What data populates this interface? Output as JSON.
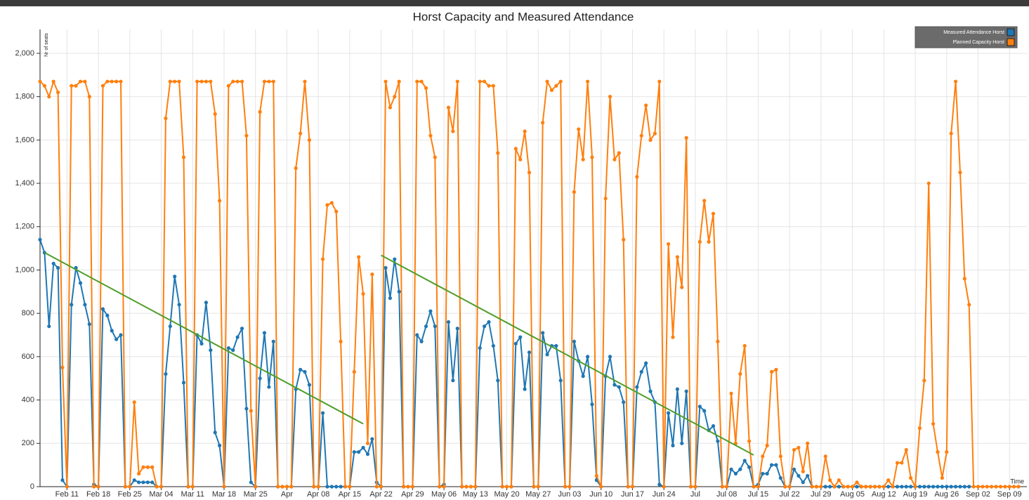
{
  "chart_data": {
    "type": "line",
    "title": "Horst Capacity and Measured Attendance",
    "y_label": "Nr of seats",
    "x_label": "Time",
    "x": [
      "Feb 05",
      "Feb 06",
      "Feb 07",
      "Feb 08",
      "Feb 09",
      "Feb 10",
      "Feb 11",
      "Feb 12",
      "Feb 13",
      "Feb 14",
      "Feb 15",
      "Feb 16",
      "Feb 17",
      "Feb 18",
      "Feb 19",
      "Feb 20",
      "Feb 21",
      "Feb 22",
      "Feb 23",
      "Feb 24",
      "Feb 25",
      "Feb 26",
      "Feb 27",
      "Feb 28",
      "Mar 01",
      "Mar 02",
      "Mar 03",
      "Mar 04",
      "Mar 05",
      "Mar 06",
      "Mar 07",
      "Mar 08",
      "Mar 09",
      "Mar 10",
      "Mar 11",
      "Mar 12",
      "Mar 13",
      "Mar 14",
      "Mar 15",
      "Mar 16",
      "Mar 17",
      "Mar 18",
      "Mar 19",
      "Mar 20",
      "Mar 21",
      "Mar 22",
      "Mar 23",
      "Mar 24",
      "Mar 25",
      "Mar 26",
      "Mar 27",
      "Mar 28",
      "Mar 29",
      "Mar 30",
      "Mar 31",
      "Apr 01",
      "Apr 02",
      "Apr 03",
      "Apr 04",
      "Apr 05",
      "Apr 06",
      "Apr 07",
      "Apr 08",
      "Apr 09",
      "Apr 10",
      "Apr 11",
      "Apr 12",
      "Apr 13",
      "Apr 14",
      "Apr 15",
      "Apr 16",
      "Apr 17",
      "Apr 18",
      "Apr 19",
      "Apr 20",
      "Apr 21",
      "Apr 22",
      "Apr 23",
      "Apr 24",
      "Apr 25",
      "Apr 26",
      "Apr 27",
      "Apr 28",
      "Apr 29",
      "Apr 30",
      "May 01",
      "May 02",
      "May 03",
      "May 04",
      "May 05",
      "May 06",
      "May 07",
      "May 08",
      "May 09",
      "May 10",
      "May 11",
      "May 12",
      "May 13",
      "May 14",
      "May 15",
      "May 16",
      "May 17",
      "May 18",
      "May 19",
      "May 20",
      "May 21",
      "May 22",
      "May 23",
      "May 24",
      "May 25",
      "May 26",
      "May 27",
      "May 28",
      "May 29",
      "May 30",
      "May 31",
      "Jun 01",
      "Jun 02",
      "Jun 03",
      "Jun 04",
      "Jun 05",
      "Jun 06",
      "Jun 07",
      "Jun 08",
      "Jun 09",
      "Jun 10",
      "Jun 11",
      "Jun 12",
      "Jun 13",
      "Jun 14",
      "Jun 15",
      "Jun 16",
      "Jun 17",
      "Jun 18",
      "Jun 19",
      "Jun 20",
      "Jun 21",
      "Jun 22",
      "Jun 23",
      "Jun 24",
      "Jun 25",
      "Jun 26",
      "Jun 27",
      "Jun 28",
      "Jun 29",
      "Jun 30",
      "Jul 01",
      "Jul 02",
      "Jul 03",
      "Jul 04",
      "Jul 05",
      "Jul 06",
      "Jul 07",
      "Jul 08",
      "Jul 09",
      "Jul 10",
      "Jul 11",
      "Jul 12",
      "Jul 13",
      "Jul 14",
      "Jul 15",
      "Jul 16",
      "Jul 17",
      "Jul 18",
      "Jul 19",
      "Jul 20",
      "Jul 21",
      "Jul 22",
      "Jul 23",
      "Jul 24",
      "Jul 25",
      "Jul 26",
      "Jul 27",
      "Jul 28",
      "Jul 29",
      "Jul 30",
      "Jul 31",
      "Aug 01",
      "Aug 02",
      "Aug 03",
      "Aug 04",
      "Aug 05",
      "Aug 06",
      "Aug 07",
      "Aug 08",
      "Aug 09",
      "Aug 10",
      "Aug 11",
      "Aug 12",
      "Aug 13",
      "Aug 14",
      "Aug 15",
      "Aug 16",
      "Aug 17",
      "Aug 18",
      "Aug 19",
      "Aug 20",
      "Aug 21",
      "Aug 22",
      "Aug 23",
      "Aug 24",
      "Aug 25",
      "Aug 26",
      "Aug 27",
      "Aug 28",
      "Aug 29",
      "Aug 30",
      "Aug 31",
      "Sep 01",
      "Sep 02",
      "Sep 03",
      "Sep 04",
      "Sep 05",
      "Sep 06",
      "Sep 07",
      "Sep 08",
      "Sep 09",
      "Sep 10",
      "Sep 11"
    ],
    "xticks": [
      "Feb 11",
      "Feb 18",
      "Feb 25",
      "Mar 04",
      "Mar 11",
      "Mar 18",
      "Mar 25",
      {
        "value": "Apr 01",
        "label": "Apr"
      },
      "Apr 08",
      "Apr 15",
      "Apr 22",
      "Apr 29",
      "May 06",
      "May 13",
      "May 20",
      "May 27",
      "Jun 03",
      "Jun 10",
      "Jun 17",
      "Jun 24",
      {
        "value": "Jul 01",
        "label": "Jul"
      },
      "Jul 08",
      "Jul 15",
      "Jul 22",
      "Jul 29",
      "Aug 05",
      "Aug 12",
      "Aug 19",
      "Aug 26",
      "Sep 02",
      "Sep 09"
    ],
    "ylim": [
      0,
      2110
    ],
    "yticks": [
      0,
      200,
      400,
      600,
      800,
      {
        "value": 1000,
        "label": "1,000"
      },
      {
        "value": 1200,
        "label": "1,200"
      },
      {
        "value": 1400,
        "label": "1,400"
      },
      {
        "value": 1600,
        "label": "1,600"
      },
      {
        "value": 1800,
        "label": "1,800"
      },
      {
        "value": 2000,
        "label": "2,000"
      }
    ],
    "grid": true,
    "legend": "top-right",
    "series": [
      {
        "name": "Measured Attendance Horst",
        "color": "#1f77b4",
        "values": [
          1140,
          1080,
          740,
          1030,
          1010,
          30,
          0,
          840,
          1010,
          940,
          840,
          750,
          10,
          0,
          820,
          790,
          720,
          680,
          700,
          0,
          0,
          30,
          20,
          20,
          20,
          20,
          0,
          0,
          520,
          740,
          970,
          840,
          480,
          0,
          0,
          700,
          660,
          850,
          630,
          250,
          190,
          0,
          640,
          630,
          690,
          730,
          360,
          20,
          0,
          500,
          710,
          460,
          670,
          0,
          0,
          0,
          0,
          450,
          540,
          530,
          470,
          0,
          0,
          340,
          0,
          0,
          0,
          0,
          0,
          0,
          160,
          160,
          180,
          150,
          220,
          20,
          0,
          1010,
          870,
          1050,
          900,
          0,
          0,
          0,
          700,
          670,
          740,
          810,
          740,
          0,
          10,
          760,
          490,
          730,
          0,
          0,
          0,
          0,
          640,
          740,
          760,
          650,
          490,
          0,
          0,
          0,
          660,
          690,
          450,
          620,
          0,
          0,
          710,
          610,
          650,
          650,
          490,
          0,
          0,
          670,
          580,
          510,
          600,
          380,
          30,
          0,
          510,
          600,
          470,
          460,
          390,
          0,
          0,
          460,
          530,
          570,
          440,
          390,
          10,
          0,
          340,
          190,
          450,
          200,
          440,
          0,
          0,
          370,
          350,
          260,
          280,
          210,
          0,
          0,
          80,
          60,
          80,
          120,
          90,
          0,
          10,
          60,
          60,
          100,
          100,
          40,
          0,
          0,
          80,
          50,
          20,
          50,
          0,
          0,
          0,
          0,
          0,
          0,
          0,
          0,
          0,
          0,
          0,
          0,
          0,
          0,
          0,
          0,
          0,
          0,
          0,
          0,
          0,
          0,
          0,
          0,
          0,
          0,
          0,
          0,
          0,
          0,
          0,
          0,
          0,
          0,
          0,
          0,
          null,
          null,
          null,
          null,
          null,
          null,
          null,
          null,
          null,
          null,
          null
        ]
      },
      {
        "name": "Planned Capacity Horst",
        "color": "#ff7f0e",
        "values": [
          1870,
          1850,
          1800,
          1870,
          1820,
          550,
          0,
          1850,
          1850,
          1870,
          1870,
          1800,
          0,
          0,
          1850,
          1870,
          1870,
          1870,
          1870,
          0,
          0,
          390,
          60,
          90,
          90,
          90,
          0,
          0,
          1700,
          1870,
          1870,
          1870,
          1520,
          0,
          0,
          1870,
          1870,
          1870,
          1870,
          1720,
          1320,
          0,
          1850,
          1870,
          1870,
          1870,
          1620,
          350,
          0,
          1730,
          1870,
          1870,
          1870,
          0,
          0,
          0,
          0,
          1470,
          1630,
          1870,
          1600,
          0,
          0,
          1050,
          1300,
          1310,
          1270,
          670,
          0,
          0,
          530,
          1060,
          890,
          200,
          980,
          0,
          0,
          1870,
          1750,
          1800,
          1870,
          0,
          0,
          0,
          1870,
          1870,
          1840,
          1620,
          1520,
          0,
          0,
          1750,
          1640,
          1870,
          0,
          0,
          0,
          0,
          1870,
          1870,
          1850,
          1850,
          1540,
          0,
          0,
          0,
          1560,
          1510,
          1640,
          1450,
          0,
          0,
          1680,
          1870,
          1830,
          1850,
          1870,
          0,
          0,
          1360,
          1650,
          1510,
          1870,
          1520,
          50,
          0,
          1330,
          1800,
          1510,
          1540,
          1140,
          0,
          0,
          1430,
          1620,
          1760,
          1600,
          1630,
          1870,
          0,
          1120,
          690,
          1060,
          920,
          1610,
          0,
          0,
          1130,
          1320,
          1130,
          1260,
          670,
          0,
          0,
          430,
          200,
          520,
          650,
          210,
          0,
          0,
          140,
          190,
          530,
          540,
          140,
          0,
          0,
          170,
          180,
          70,
          200,
          0,
          0,
          0,
          140,
          30,
          0,
          30,
          0,
          0,
          0,
          20,
          0,
          0,
          0,
          0,
          0,
          0,
          30,
          0,
          110,
          110,
          170,
          40,
          0,
          270,
          490,
          1400,
          290,
          160,
          40,
          160,
          1630,
          1870,
          1450,
          960,
          840,
          0,
          0,
          0,
          0,
          0,
          0,
          0,
          0,
          0,
          0,
          0
        ]
      }
    ],
    "trendlines": [
      {
        "color": "#4f9e2a",
        "x": [
          "Feb 06",
          "Apr 18"
        ],
        "values": [
          1080,
          290
        ]
      },
      {
        "color": "#4f9e2a",
        "x": [
          "Apr 22",
          "Jul 14"
        ],
        "values": [
          1068,
          146
        ]
      }
    ]
  }
}
